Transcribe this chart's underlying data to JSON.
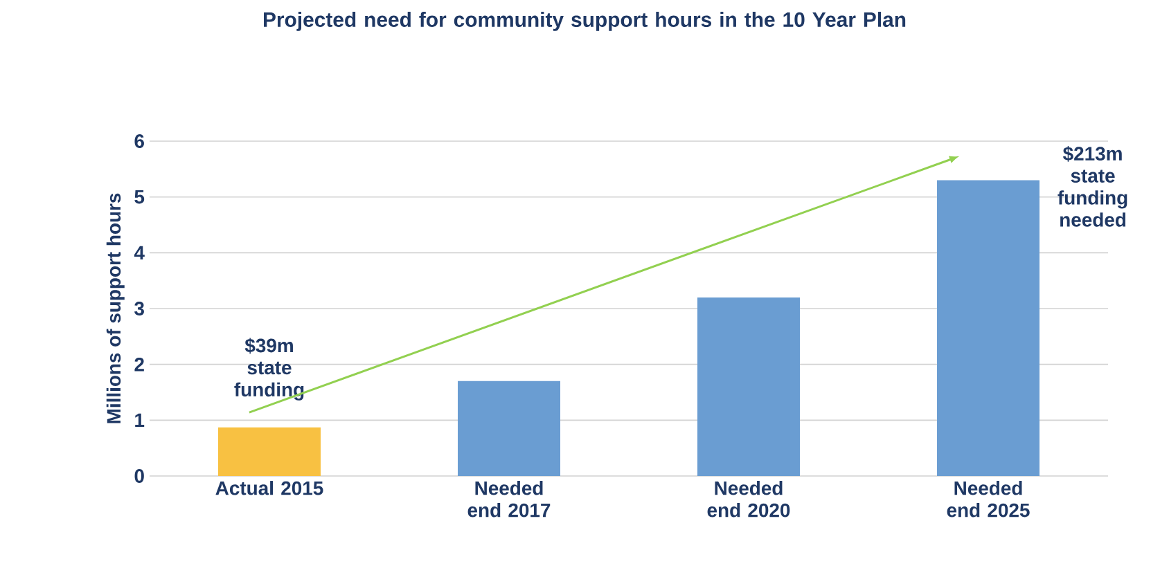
{
  "chart_data": {
    "type": "bar",
    "title": "Projected need for community support hours in the 10 Year Plan",
    "ylabel": "Millions of support hours",
    "categories": [
      "Actual 2015",
      "Needed end 2017",
      "Needed end 2020",
      "Needed end 2025"
    ],
    "values": [
      0.87,
      1.7,
      3.2,
      5.3
    ],
    "colors": [
      "#f8c142",
      "#6a9dd2",
      "#6a9dd2",
      "#6a9dd2"
    ],
    "ylim": [
      0,
      6
    ],
    "yticks": [
      0,
      1,
      2,
      3,
      4,
      5,
      6
    ],
    "grid": "y",
    "annotations": [
      "$39m state funding",
      "$213m state funding needed"
    ]
  }
}
